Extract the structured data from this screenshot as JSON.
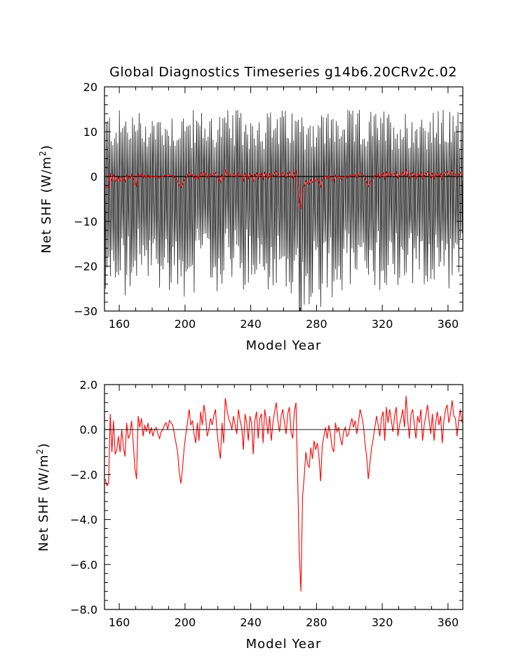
{
  "chart_data": [
    {
      "type": "line",
      "title": "Global Diagnostics Timeseries g14b6.20CRv2c.02",
      "xlabel": "Model Year",
      "ylabel": "Net SHF (W/m²)",
      "xlim": [
        151,
        369
      ],
      "ylim": [
        -30,
        20
      ],
      "x_ticks": [
        160,
        200,
        240,
        280,
        320,
        360
      ],
      "y_ticks": [
        -30,
        -20,
        -10,
        0,
        10,
        20
      ],
      "x_tick_labels": [
        "160",
        "200",
        "240",
        "280",
        "320",
        "360"
      ],
      "y_tick_labels": [
        "−30",
        "−20",
        "−10",
        "0",
        "10",
        "20"
      ],
      "zero_line": true,
      "grid": false,
      "legend": "none",
      "colors": {
        "monthly": "#000000",
        "annual": "#ff0000"
      },
      "series": [
        {
          "kind": "monthly",
          "color": "#000000",
          "seasonal_max_range": [
            6,
            15
          ],
          "seasonal_min_range": [
            -26,
            -12
          ],
          "note_values": "monthly values oscillate annually between about +6 to +15 and -12 to -26 W/m2"
        },
        {
          "kind": "annual",
          "color": "#ff0000",
          "source": "annual_means"
        }
      ]
    },
    {
      "type": "line",
      "title": "",
      "xlabel": "Model Year",
      "ylabel": "Net SHF (W/m²)",
      "xlim": [
        151,
        369
      ],
      "ylim": [
        -8,
        2
      ],
      "x_ticks": [
        160,
        200,
        240,
        280,
        320,
        360
      ],
      "y_ticks": [
        -8,
        -6,
        -4,
        -2,
        0,
        2
      ],
      "x_tick_labels": [
        "160",
        "200",
        "240",
        "280",
        "320",
        "360"
      ],
      "y_tick_labels": [
        "−8.0",
        "−6.0",
        "−4.0",
        "−2.0",
        "0.0",
        "2.0"
      ],
      "zero_line": true,
      "grid": false,
      "legend": "none",
      "colors": {
        "annual": "#ff0000"
      },
      "series": [
        {
          "kind": "annual",
          "color": "#ff0000",
          "source": "annual_means"
        }
      ]
    }
  ],
  "annual_means": {
    "start_year": 151,
    "values": [
      -2.2,
      -2.5,
      -2.4,
      0.7,
      -1.0,
      0.4,
      -1.1,
      -0.9,
      -0.3,
      -1.0,
      0.0,
      -0.8,
      -1.2,
      0.3,
      -0.4,
      -0.2,
      0.4,
      -0.6,
      -1.7,
      -2.2,
      0.6,
      0.1,
      0.5,
      -0.3,
      0.2,
      -0.1,
      0.3,
      -0.2,
      0.1,
      -0.3,
      0.0,
      0.1,
      -0.2,
      -0.4,
      -0.1,
      0.0,
      0.2,
      0.3,
      0.0,
      0.4,
      0.3,
      0.2,
      -0.2,
      -0.6,
      -1.0,
      -1.9,
      -2.4,
      -1.7,
      -0.8,
      -0.2,
      0.3,
      0.9,
      0.2,
      0.4,
      -0.2,
      -0.6,
      0.3,
      -0.5,
      0.8,
      0.2,
      1.1,
      0.6,
      -0.3,
      0.0,
      0.5,
      0.2,
      0.6,
      0.9,
      -0.1,
      -0.8,
      -1.3,
      0.3,
      -0.6,
      1.4,
      0.9,
      0.5,
      0.3,
      0.0,
      0.6,
      0.2,
      -0.2,
      0.9,
      0.4,
      0.1,
      -0.9,
      0.7,
      0.3,
      -0.5,
      0.6,
      0.3,
      -1.1,
      0.4,
      0.8,
      -0.4,
      0.5,
      0.7,
      -0.6,
      0.9,
      0.4,
      -0.2,
      0.6,
      -0.5,
      0.3,
      0.8,
      1.2,
      0.4,
      -0.1,
      0.6,
      0.9,
      0.3,
      -0.2,
      0.7,
      1.0,
      -0.1,
      -0.4,
      0.8,
      1.2,
      -2.0,
      -5.5,
      -7.2,
      -3.0,
      -2.1,
      -1.0,
      -1.5,
      -1.7,
      -0.8,
      -1.3,
      -0.5,
      -0.9,
      -0.6,
      -1.2,
      -2.3,
      -0.7,
      -0.3,
      0.1,
      -0.4,
      0.2,
      -0.2,
      -0.8,
      -1.0,
      0.3,
      -0.1,
      0.1,
      -0.4,
      -0.7,
      -0.1,
      0.1,
      -0.3,
      -0.2,
      0.2,
      0.5,
      0.1,
      0.4,
      -0.2,
      0.3,
      0.9,
      0.6,
      0.2,
      -0.6,
      -1.2,
      -2.2,
      -1.5,
      -0.8,
      -0.4,
      0.1,
      0.6,
      0.2,
      -0.3,
      0.5,
      0.8,
      -0.5,
      1.0,
      0.3,
      0.9,
      0.4,
      -0.1,
      0.6,
      1.0,
      -0.3,
      0.2,
      0.5,
      0.9,
      0.1,
      1.5,
      0.4,
      -0.4,
      0.7,
      0.9,
      0.2,
      -0.4,
      0.6,
      0.3,
      0.9,
      -0.5,
      0.2,
      0.6,
      1.1,
      0.4,
      -0.2,
      0.7,
      -0.5,
      0.3,
      0.8,
      0.2,
      0.6,
      -0.6,
      0.4,
      0.9,
      1.1,
      0.3,
      0.7,
      1.3,
      0.6,
      0.5,
      -0.3,
      0.4,
      0.9,
      0.3
    ]
  }
}
